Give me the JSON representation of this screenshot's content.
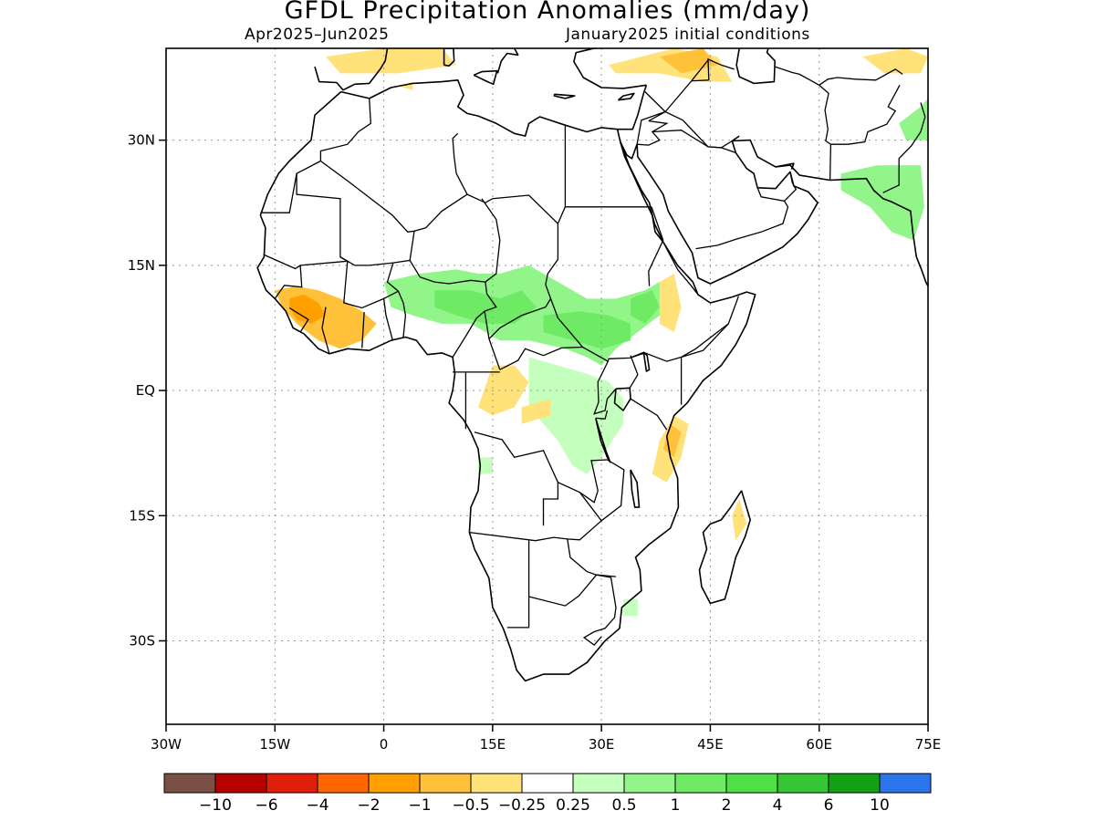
{
  "title": "GFDL Precipitation Anomalies (mm/day)",
  "subtitle_left": "Apr2025–Jun2025",
  "subtitle_right": "January2025 initial conditions",
  "map": {
    "lon_range": [
      -30,
      75
    ],
    "lat_range": [
      -40,
      41
    ],
    "lat_ticks": [
      {
        "value": 30,
        "label": "30N"
      },
      {
        "value": 15,
        "label": "15N"
      },
      {
        "value": 0,
        "label": "EQ"
      },
      {
        "value": -15,
        "label": "15S"
      },
      {
        "value": -30,
        "label": "30S"
      }
    ],
    "lon_ticks": [
      {
        "value": -30,
        "label": "30W"
      },
      {
        "value": -15,
        "label": "15W"
      },
      {
        "value": 0,
        "label": "0"
      },
      {
        "value": 15,
        "label": "15E"
      },
      {
        "value": 30,
        "label": "30E"
      },
      {
        "value": 45,
        "label": "45E"
      },
      {
        "value": 60,
        "label": "60E"
      },
      {
        "value": 75,
        "label": "75E"
      }
    ],
    "grid": true
  },
  "legend": {
    "colors": [
      "#7a4f45",
      "#b80000",
      "#e01f0b",
      "#ff6600",
      "#ffa000",
      "#ffc13a",
      "#ffe27a",
      "#ffffff",
      "#c5ffbd",
      "#91f58a",
      "#6eea65",
      "#4ee044",
      "#36c635",
      "#13a013",
      "#2c74ec"
    ],
    "labels": [
      "−10",
      "−6",
      "−4",
      "−2",
      "−1",
      "−0.5",
      "−0.25",
      "0.25",
      "0.5",
      "1",
      "2",
      "4",
      "6",
      "10"
    ]
  },
  "anomaly_regions": [
    {
      "level": "0.5",
      "color": "#91f58a",
      "points": [
        [
          0,
          13
        ],
        [
          5,
          14
        ],
        [
          10,
          14.5
        ],
        [
          13,
          14
        ],
        [
          16,
          14
        ],
        [
          20,
          15
        ],
        [
          24,
          13
        ],
        [
          28,
          11
        ],
        [
          32,
          11
        ],
        [
          36,
          12
        ],
        [
          38,
          13
        ],
        [
          40,
          12
        ],
        [
          38,
          9
        ],
        [
          35,
          7
        ],
        [
          32,
          5
        ],
        [
          30,
          3
        ],
        [
          28,
          4
        ],
        [
          25,
          5
        ],
        [
          20,
          6
        ],
        [
          16,
          6
        ],
        [
          12,
          8
        ],
        [
          8,
          8
        ],
        [
          4,
          9
        ],
        [
          1,
          10
        ]
      ]
    },
    {
      "level": "0.25",
      "color": "#c5ffbd",
      "points": [
        [
          20,
          4
        ],
        [
          24,
          3
        ],
        [
          28,
          2
        ],
        [
          31,
          1
        ],
        [
          33,
          -1
        ],
        [
          33,
          -4
        ],
        [
          30,
          -8
        ],
        [
          28,
          -10
        ],
        [
          26,
          -9
        ],
        [
          24,
          -6
        ],
        [
          22,
          -4
        ],
        [
          20,
          -2
        ]
      ]
    },
    {
      "level": "0.25",
      "color": "#c5ffbd",
      "points": [
        [
          13,
          -8
        ],
        [
          15,
          -8
        ],
        [
          15,
          -10
        ],
        [
          13,
          -10
        ]
      ]
    },
    {
      "level": "0.25",
      "color": "#c5ffbd",
      "points": [
        [
          33,
          -25
        ],
        [
          35,
          -25
        ],
        [
          35,
          -27
        ],
        [
          33,
          -27
        ]
      ]
    },
    {
      "level": "1",
      "color": "#6eea65",
      "points": [
        [
          7,
          12
        ],
        [
          12,
          12
        ],
        [
          16,
          11
        ],
        [
          19,
          12
        ],
        [
          21,
          10
        ],
        [
          18,
          8
        ],
        [
          14,
          8
        ],
        [
          10,
          9
        ],
        [
          7,
          10
        ]
      ]
    },
    {
      "level": "1",
      "color": "#6eea65",
      "points": [
        [
          22,
          9
        ],
        [
          27,
          9.5
        ],
        [
          31,
          9
        ],
        [
          34,
          8
        ],
        [
          34,
          6
        ],
        [
          30,
          5
        ],
        [
          26,
          6
        ],
        [
          22,
          7
        ]
      ]
    },
    {
      "level": "1",
      "color": "#6eea65",
      "points": [
        [
          34,
          11
        ],
        [
          37,
          12
        ],
        [
          38,
          10
        ],
        [
          36,
          8
        ],
        [
          34,
          9
        ]
      ]
    },
    {
      "level": "0.5",
      "color": "#91f58a",
      "points": [
        [
          63,
          26
        ],
        [
          68,
          27
        ],
        [
          74,
          27
        ],
        [
          74.5,
          22
        ],
        [
          73,
          18
        ],
        [
          70,
          19
        ],
        [
          67,
          22
        ],
        [
          63,
          24
        ]
      ]
    },
    {
      "level": "0.5",
      "color": "#91f58a",
      "points": [
        [
          71,
          32
        ],
        [
          74,
          34
        ],
        [
          75,
          35
        ],
        [
          75,
          30
        ],
        [
          72,
          30
        ]
      ]
    },
    {
      "level": "-0.5",
      "color": "#ffc13a",
      "points": [
        [
          -15,
          12
        ],
        [
          -12,
          12.5
        ],
        [
          -9,
          12
        ],
        [
          -6,
          11
        ],
        [
          -3,
          9.5
        ],
        [
          -1,
          8
        ],
        [
          -3,
          6
        ],
        [
          -6,
          5
        ],
        [
          -9,
          6
        ],
        [
          -12,
          8
        ],
        [
          -14,
          10
        ]
      ]
    },
    {
      "level": "-1",
      "color": "#ffa000",
      "points": [
        [
          -13,
          11
        ],
        [
          -11,
          11.5
        ],
        [
          -9,
          10.5
        ],
        [
          -8,
          9
        ],
        [
          -10,
          8
        ],
        [
          -12,
          8.5
        ],
        [
          -13,
          10
        ]
      ]
    },
    {
      "level": "-0.25",
      "color": "#ffe27a",
      "points": [
        [
          15,
          3
        ],
        [
          18,
          3
        ],
        [
          20,
          1
        ],
        [
          18,
          -2
        ],
        [
          15,
          -3
        ],
        [
          13,
          -2
        ]
      ]
    },
    {
      "level": "-0.25",
      "color": "#ffe27a",
      "points": [
        [
          19,
          -2
        ],
        [
          23,
          -1
        ],
        [
          23,
          -3
        ],
        [
          19,
          -4
        ]
      ]
    },
    {
      "level": "-0.25",
      "color": "#ffe27a",
      "points": [
        [
          40,
          -3
        ],
        [
          42,
          -4
        ],
        [
          41,
          -8
        ],
        [
          39,
          -11
        ],
        [
          37,
          -10
        ],
        [
          38,
          -6
        ]
      ]
    },
    {
      "level": "-0.5",
      "color": "#ffc13a",
      "points": [
        [
          39.5,
          -4
        ],
        [
          41,
          -5
        ],
        [
          40,
          -8
        ],
        [
          38.5,
          -7
        ]
      ]
    },
    {
      "level": "-0.25",
      "color": "#ffe27a",
      "points": [
        [
          38,
          13
        ],
        [
          40,
          14
        ],
        [
          41,
          10
        ],
        [
          40,
          7
        ],
        [
          38,
          8
        ]
      ]
    },
    {
      "level": "-0.25",
      "color": "#ffe27a",
      "points": [
        [
          48,
          -15
        ],
        [
          49,
          -13
        ],
        [
          50,
          -16
        ],
        [
          48.5,
          -18
        ]
      ]
    },
    {
      "level": "-0.25",
      "color": "#ffe27a",
      "points": [
        [
          -8,
          40
        ],
        [
          0,
          41
        ],
        [
          8,
          41
        ],
        [
          10,
          39
        ],
        [
          2,
          38
        ],
        [
          -6,
          38
        ]
      ]
    },
    {
      "level": "-0.25",
      "color": "#ffe27a",
      "points": [
        [
          31,
          39
        ],
        [
          40,
          41
        ],
        [
          46,
          40
        ],
        [
          48,
          37
        ],
        [
          44,
          37
        ],
        [
          38,
          38
        ],
        [
          32,
          38
        ]
      ]
    },
    {
      "level": "-0.5",
      "color": "#ffc13a",
      "points": [
        [
          38,
          40
        ],
        [
          44,
          41
        ],
        [
          46,
          39
        ],
        [
          41,
          38
        ]
      ]
    },
    {
      "level": "-0.25",
      "color": "#ffe27a",
      "points": [
        [
          66,
          40
        ],
        [
          72,
          41
        ],
        [
          75,
          40
        ],
        [
          74,
          38
        ],
        [
          69,
          38
        ]
      ]
    },
    {
      "level": "-0.25",
      "color": "#ffe27a",
      "points": [
        [
          2,
          36.5
        ],
        [
          4,
          37
        ],
        [
          4,
          36
        ]
      ]
    }
  ]
}
